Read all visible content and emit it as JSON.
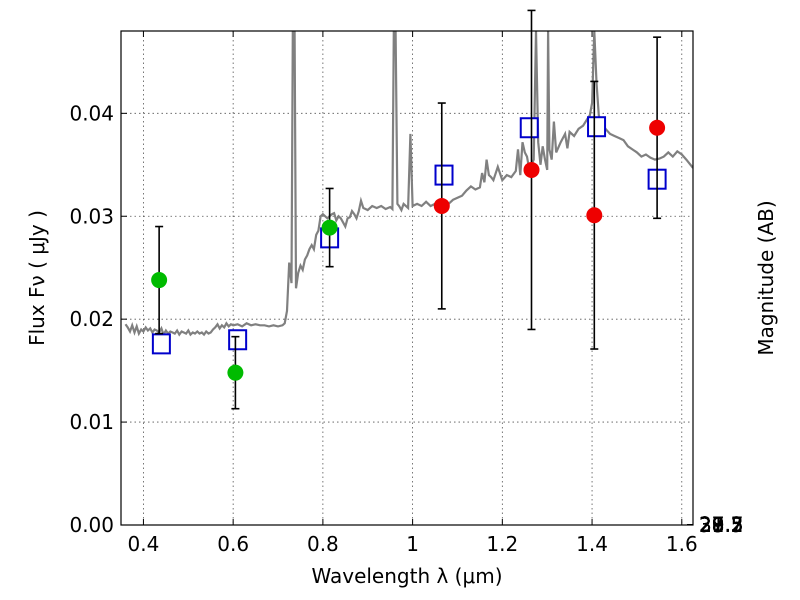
{
  "chart_data": {
    "type": "scatter",
    "xlabel": "Wavelength  λ (μm)",
    "ylabel": "Flux  Fν  ( μJy )",
    "ylabel_right": "Magnitude (AB)",
    "xlim": [
      0.35,
      1.625
    ],
    "ylim": [
      0.0,
      0.048
    ],
    "grid": true,
    "x_ticks": [
      0.4,
      0.6,
      0.8,
      1.0,
      1.2,
      1.4,
      1.6
    ],
    "x_tick_labels": [
      "0.4",
      "0.6",
      "0.8",
      "1",
      "1.2",
      "1.4",
      "1.6"
    ],
    "y_ticks": [
      0.0,
      0.01,
      0.02,
      0.03,
      0.04
    ],
    "y_tick_labels": [
      "0.00",
      "0.01",
      "0.02",
      "0.03",
      "0.04"
    ],
    "right_ticks": [
      27.2,
      27.3,
      27.5,
      27.7,
      28,
      28.2,
      28.5,
      29,
      29.5,
      30,
      31
    ],
    "right_tick_labels": [
      "27.2",
      "27.3",
      "27.5",
      "27.7",
      "28",
      "28.2",
      "28.5",
      "29",
      "29.5",
      "30",
      "31"
    ],
    "colors": {
      "spectrum": "#808080",
      "model": "#0000cc",
      "optical": "#00bb00",
      "infrared": "#ee0000",
      "errorbar": "#000000"
    },
    "spectrum": [
      [
        0.36,
        0.0195
      ],
      [
        0.365,
        0.0192
      ],
      [
        0.37,
        0.0188
      ],
      [
        0.375,
        0.0194
      ],
      [
        0.38,
        0.0187
      ],
      [
        0.385,
        0.0193
      ],
      [
        0.39,
        0.0186
      ],
      [
        0.395,
        0.019
      ],
      [
        0.4,
        0.0188
      ],
      [
        0.405,
        0.0192
      ],
      [
        0.41,
        0.0189
      ],
      [
        0.415,
        0.0191
      ],
      [
        0.42,
        0.0187
      ],
      [
        0.425,
        0.019
      ],
      [
        0.43,
        0.0189
      ],
      [
        0.435,
        0.0187
      ],
      [
        0.44,
        0.0191
      ],
      [
        0.445,
        0.0185
      ],
      [
        0.45,
        0.0189
      ],
      [
        0.455,
        0.0186
      ],
      [
        0.46,
        0.0188
      ],
      [
        0.465,
        0.0187
      ],
      [
        0.47,
        0.0186
      ],
      [
        0.475,
        0.0189
      ],
      [
        0.48,
        0.0185
      ],
      [
        0.485,
        0.0188
      ],
      [
        0.49,
        0.0187
      ],
      [
        0.495,
        0.0186
      ],
      [
        0.5,
        0.0189
      ],
      [
        0.505,
        0.0185
      ],
      [
        0.51,
        0.0187
      ],
      [
        0.515,
        0.0186
      ],
      [
        0.52,
        0.0188
      ],
      [
        0.525,
        0.0186
      ],
      [
        0.53,
        0.0187
      ],
      [
        0.535,
        0.0185
      ],
      [
        0.54,
        0.0188
      ],
      [
        0.545,
        0.0186
      ],
      [
        0.55,
        0.0187
      ],
      [
        0.555,
        0.019
      ],
      [
        0.56,
        0.0192
      ],
      [
        0.565,
        0.0195
      ],
      [
        0.57,
        0.0191
      ],
      [
        0.575,
        0.0194
      ],
      [
        0.58,
        0.0192
      ],
      [
        0.585,
        0.0196
      ],
      [
        0.59,
        0.0193
      ],
      [
        0.595,
        0.0195
      ],
      [
        0.6,
        0.0194
      ],
      [
        0.61,
        0.0195
      ],
      [
        0.62,
        0.0193
      ],
      [
        0.63,
        0.0196
      ],
      [
        0.64,
        0.0194
      ],
      [
        0.65,
        0.0195
      ],
      [
        0.66,
        0.0194
      ],
      [
        0.67,
        0.0194
      ],
      [
        0.68,
        0.0193
      ],
      [
        0.69,
        0.0194
      ],
      [
        0.7,
        0.0193
      ],
      [
        0.71,
        0.0194
      ],
      [
        0.715,
        0.0196
      ],
      [
        0.72,
        0.0208
      ],
      [
        0.725,
        0.0255
      ],
      [
        0.73,
        0.0235
      ],
      [
        0.733,
        0.048
      ],
      [
        0.737,
        0.048
      ],
      [
        0.74,
        0.023
      ],
      [
        0.745,
        0.0245
      ],
      [
        0.75,
        0.0252
      ],
      [
        0.755,
        0.0248
      ],
      [
        0.76,
        0.0258
      ],
      [
        0.765,
        0.0262
      ],
      [
        0.77,
        0.0268
      ],
      [
        0.775,
        0.0272
      ],
      [
        0.78,
        0.0268
      ],
      [
        0.785,
        0.0282
      ],
      [
        0.79,
        0.0286
      ],
      [
        0.795,
        0.03
      ],
      [
        0.8,
        0.0302
      ],
      [
        0.81,
        0.0298
      ],
      [
        0.82,
        0.0302
      ],
      [
        0.825,
        0.0303
      ],
      [
        0.83,
        0.0296
      ],
      [
        0.835,
        0.03
      ],
      [
        0.84,
        0.0298
      ],
      [
        0.845,
        0.0294
      ],
      [
        0.85,
        0.029
      ],
      [
        0.855,
        0.0298
      ],
      [
        0.86,
        0.0299
      ],
      [
        0.865,
        0.0305
      ],
      [
        0.87,
        0.0302
      ],
      [
        0.875,
        0.0298
      ],
      [
        0.88,
        0.0305
      ],
      [
        0.885,
        0.0315
      ],
      [
        0.89,
        0.0308
      ],
      [
        0.895,
        0.0307
      ],
      [
        0.9,
        0.0306
      ],
      [
        0.91,
        0.031
      ],
      [
        0.92,
        0.0308
      ],
      [
        0.93,
        0.031
      ],
      [
        0.94,
        0.0307
      ],
      [
        0.95,
        0.0309
      ],
      [
        0.955,
        0.0307
      ],
      [
        0.958,
        0.048
      ],
      [
        0.962,
        0.048
      ],
      [
        0.966,
        0.0312
      ],
      [
        0.97,
        0.031
      ],
      [
        0.975,
        0.0306
      ],
      [
        0.98,
        0.0312
      ],
      [
        0.99,
        0.0308
      ],
      [
        0.995,
        0.038
      ],
      [
        1.0,
        0.031
      ],
      [
        1.01,
        0.0312
      ],
      [
        1.02,
        0.031
      ],
      [
        1.03,
        0.0314
      ],
      [
        1.04,
        0.031
      ],
      [
        1.05,
        0.0312
      ],
      [
        1.06,
        0.031
      ],
      [
        1.07,
        0.0314
      ],
      [
        1.08,
        0.0312
      ],
      [
        1.09,
        0.0316
      ],
      [
        1.1,
        0.0318
      ],
      [
        1.11,
        0.032
      ],
      [
        1.12,
        0.0325
      ],
      [
        1.13,
        0.0329
      ],
      [
        1.14,
        0.0326
      ],
      [
        1.15,
        0.0328
      ],
      [
        1.155,
        0.0342
      ],
      [
        1.16,
        0.0333
      ],
      [
        1.165,
        0.0355
      ],
      [
        1.17,
        0.034
      ],
      [
        1.175,
        0.0338
      ],
      [
        1.18,
        0.0335
      ],
      [
        1.19,
        0.0348
      ],
      [
        1.2,
        0.0335
      ],
      [
        1.21,
        0.034
      ],
      [
        1.22,
        0.0338
      ],
      [
        1.23,
        0.0344
      ],
      [
        1.235,
        0.0365
      ],
      [
        1.24,
        0.034
      ],
      [
        1.245,
        0.0372
      ],
      [
        1.25,
        0.0362
      ],
      [
        1.255,
        0.0358
      ],
      [
        1.26,
        0.0345
      ],
      [
        1.27,
        0.0355
      ],
      [
        1.275,
        0.048
      ],
      [
        1.28,
        0.0372
      ],
      [
        1.285,
        0.035
      ],
      [
        1.29,
        0.0368
      ],
      [
        1.295,
        0.0355
      ],
      [
        1.3,
        0.0345
      ],
      [
        1.302,
        0.048
      ],
      [
        1.305,
        0.0365
      ],
      [
        1.31,
        0.0355
      ],
      [
        1.315,
        0.0392
      ],
      [
        1.32,
        0.0362
      ],
      [
        1.33,
        0.0372
      ],
      [
        1.34,
        0.038
      ],
      [
        1.345,
        0.0366
      ],
      [
        1.35,
        0.0382
      ],
      [
        1.36,
        0.0378
      ],
      [
        1.37,
        0.0385
      ],
      [
        1.38,
        0.0388
      ],
      [
        1.39,
        0.0395
      ],
      [
        1.395,
        0.0398
      ],
      [
        1.4,
        0.041
      ],
      [
        1.405,
        0.048
      ],
      [
        1.41,
        0.043
      ],
      [
        1.415,
        0.0398
      ],
      [
        1.42,
        0.0392
      ],
      [
        1.43,
        0.0385
      ],
      [
        1.44,
        0.038
      ],
      [
        1.45,
        0.0378
      ],
      [
        1.46,
        0.0376
      ],
      [
        1.47,
        0.0374
      ],
      [
        1.48,
        0.0368
      ],
      [
        1.49,
        0.0365
      ],
      [
        1.5,
        0.0362
      ],
      [
        1.51,
        0.0358
      ],
      [
        1.52,
        0.036
      ],
      [
        1.53,
        0.0357
      ],
      [
        1.54,
        0.0355
      ],
      [
        1.55,
        0.0356
      ],
      [
        1.56,
        0.0358
      ],
      [
        1.57,
        0.0362
      ],
      [
        1.58,
        0.0358
      ],
      [
        1.59,
        0.0363
      ],
      [
        1.6,
        0.036
      ],
      [
        1.61,
        0.0355
      ],
      [
        1.625,
        0.0347
      ]
    ],
    "series": [
      {
        "marker": "open-square",
        "points": [
          {
            "x": 0.44,
            "y": 0.0176
          },
          {
            "x": 0.61,
            "y": 0.018
          },
          {
            "x": 0.815,
            "y": 0.0279
          },
          {
            "x": 1.07,
            "y": 0.034
          },
          {
            "x": 1.26,
            "y": 0.0386
          },
          {
            "x": 1.41,
            "y": 0.0387
          },
          {
            "x": 1.545,
            "y": 0.0336
          }
        ]
      },
      {
        "marker": "filled-circle",
        "color_key": "optical",
        "points": [
          {
            "x": 0.435,
            "y": 0.0238,
            "err": 0.0052
          },
          {
            "x": 0.605,
            "y": 0.0148,
            "err": 0.0035
          },
          {
            "x": 0.815,
            "y": 0.0289,
            "err": 0.0038
          }
        ]
      },
      {
        "marker": "filled-circle",
        "color_key": "infrared",
        "points": [
          {
            "x": 1.065,
            "y": 0.031,
            "err": 0.01
          },
          {
            "x": 1.265,
            "y": 0.0345,
            "err": 0.0155
          },
          {
            "x": 1.405,
            "y": 0.0301,
            "err": 0.013
          },
          {
            "x": 1.545,
            "y": 0.0386,
            "err": 0.0088
          }
        ]
      }
    ]
  }
}
